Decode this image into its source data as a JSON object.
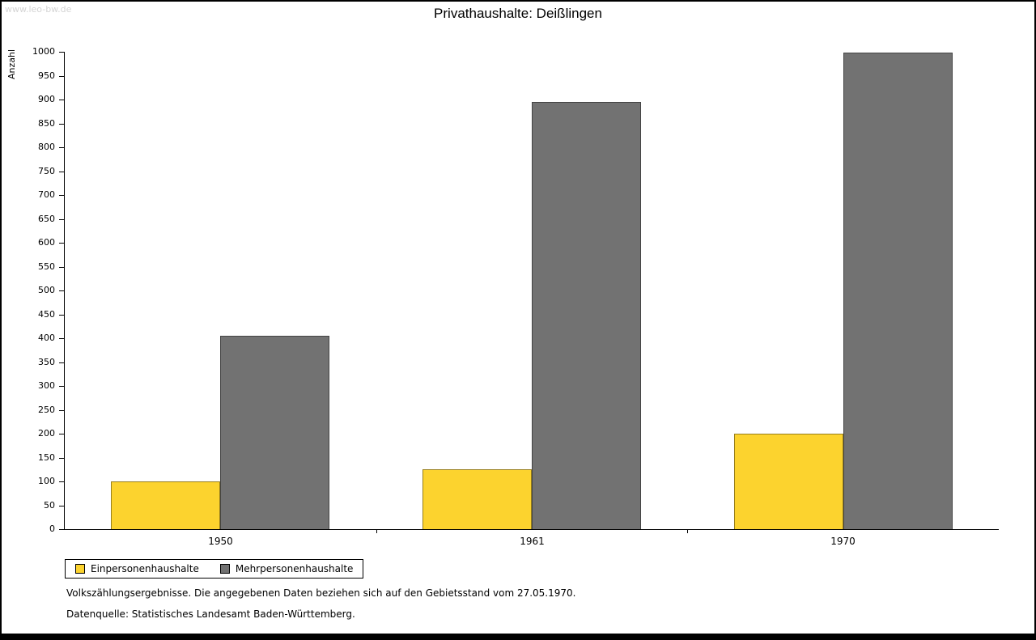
{
  "page": {
    "watermark": "www.leo-bw.de",
    "footnote1": "Volkszählungsergebnisse. Die angegebenen Daten beziehen sich auf den Gebietsstand vom 27.05.1970.",
    "footnote2": "Datenquelle: Statistisches Landesamt Baden-Württemberg."
  },
  "chart_data": {
    "type": "bar",
    "title": "Privathaushalte: Deißlingen",
    "xlabel": "",
    "ylabel": "Anzahl",
    "categories": [
      "1950",
      "1961",
      "1970"
    ],
    "series": [
      {
        "name": "Einpersonenhaushalte",
        "color": "#fcd32e",
        "values": [
          100,
          125,
          200
        ]
      },
      {
        "name": "Mehrpersonenhaushalte",
        "color": "#727272",
        "values": [
          405,
          895,
          998
        ]
      }
    ],
    "ylim": [
      0,
      1000
    ],
    "ytick_step": 50,
    "grid": false,
    "legend_position": "bottom-left"
  }
}
